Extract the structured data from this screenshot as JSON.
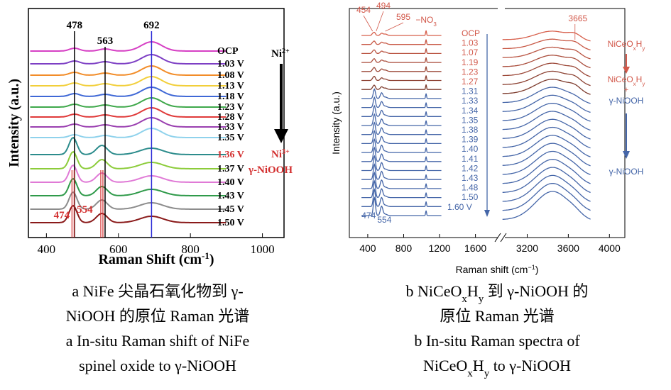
{
  "panel_a": {
    "x_label": [
      "Raman Shift (cm",
      "-1",
      ")"
    ],
    "y_label": "Intensity (a.u.)",
    "xlim": [
      350,
      1060
    ],
    "xticks": [
      400,
      600,
      800,
      1000
    ],
    "peak_labels": [
      478,
      563,
      692
    ],
    "bottom_peaks": [
      474,
      554
    ],
    "curves": [
      {
        "label": "OCP",
        "color": "#d63fc4"
      },
      {
        "label": "1.03 V",
        "color": "#7d3fc4"
      },
      {
        "label": "1.08 V",
        "color": "#f28c28"
      },
      {
        "label": "1.13 V",
        "color": "#f2cf3a"
      },
      {
        "label": "1.18 V",
        "color": "#3f68d6"
      },
      {
        "label": "1.23 V",
        "color": "#3ea84a"
      },
      {
        "label": "1.28 V",
        "color": "#e03a3a"
      },
      {
        "label": "1.33 V",
        "color": "#9a3fb0"
      },
      {
        "label": "1.35 V",
        "color": "#8fd2ec"
      },
      {
        "label": "1.36 V",
        "color": "#2c8c8c"
      },
      {
        "label": "1.37 V",
        "color": "#8ccc3a"
      },
      {
        "label": "1.40 V",
        "color": "#e07ad6"
      },
      {
        "label": "1.43 V",
        "color": "#2f9a4a"
      },
      {
        "label": "1.45 V",
        "color": "#8c8c8c"
      },
      {
        "label": "1.50 V",
        "color": "#8a1a1a"
      }
    ],
    "highlight_curve": 9,
    "ann_top": [
      "Ni",
      "2+"
    ],
    "ann_bottom": [
      "Ni",
      "3+"
    ],
    "ann_phase": "γ-NiOOH"
  },
  "panel_b": {
    "x_label": [
      "Raman shift (cm",
      "−1",
      ")"
    ],
    "y_label": "Intensity (a.u.)",
    "xlim_left": [
      195,
      1880
    ],
    "xlim_right": [
      2955,
      4150
    ],
    "xticks_left": [
      400,
      800,
      1200,
      1600
    ],
    "xticks_right": [
      3200,
      3600,
      4000
    ],
    "top_peaks": [
      454,
      494,
      595
    ],
    "nitrate": [
      "−NO",
      "3"
    ],
    "oh_peak": 3665,
    "bottom_peaks": [
      474,
      554
    ],
    "curve_labels": [
      "OCP",
      "1.03",
      "1.07",
      "1.19",
      "1.23",
      "1.27",
      "1.31",
      "1.33",
      "1.34",
      "1.35",
      "1.38",
      "1.39",
      "1.40",
      "1.41",
      "1.42",
      "1.43",
      "1.48",
      "1.50",
      "1.60 V"
    ],
    "ann_1": [
      "NiCeO",
      "x",
      "H",
      "y"
    ],
    "ann_2": [
      "NiCeO",
      "x",
      "H",
      "y"
    ],
    "ann_plus": "+",
    "ann_3": "γ-NiOOH",
    "ann_4": "γ-NiOOH"
  },
  "captions": {
    "a": [
      [
        "a  NiFe 尖晶石氧化物到 γ-"
      ],
      [
        "NiOOH 的原位 Raman 光谱"
      ],
      [
        "a  In-situ Raman shift of NiFe"
      ],
      [
        "spinel oxide to γ-NiOOH"
      ]
    ],
    "b": [
      [
        "b  NiCeO",
        "x",
        "H",
        "y",
        " 到 γ-NiOOH 的"
      ],
      [
        "原位 Raman 光谱"
      ],
      [
        "b  In-situ Raman spectra  of"
      ],
      [
        "NiCeO",
        "x",
        "H",
        "y",
        " to γ-NiOOH"
      ]
    ]
  }
}
